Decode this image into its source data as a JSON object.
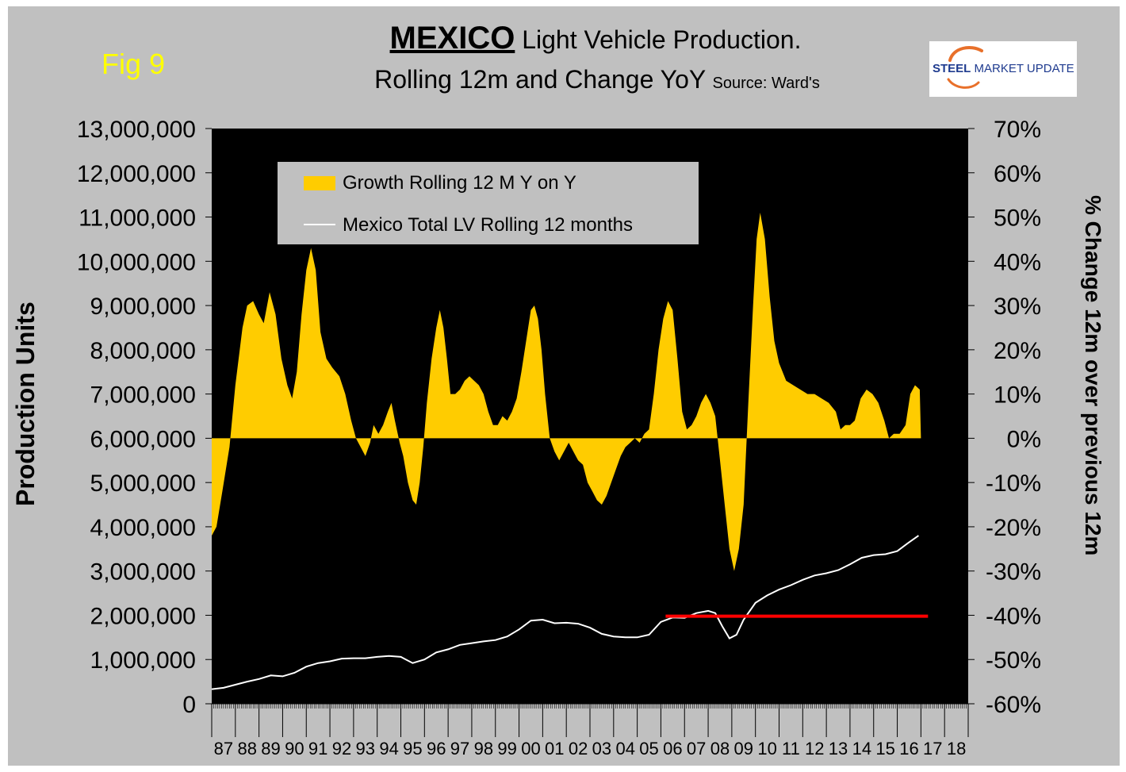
{
  "header": {
    "fig_label": "Fig 9",
    "title_bold": "MEXICO",
    "title_rest": " Light Vehicle Production.",
    "subtitle": "Rolling 12m and Change YoY",
    "source": "Source: Ward's",
    "logo_bold": "STEEL",
    "logo_rest": " MARKET UPDATE"
  },
  "colors": {
    "frame": "#c0c0c0",
    "plot_bg": "#000000",
    "growth": "#ffcc00",
    "line": "#ffffff",
    "reference": "#ff0000",
    "fig_label": "#ffff00"
  },
  "chart_data": {
    "type": "bar",
    "title": "MEXICO Light Vehicle Production. Rolling 12m and Change YoY",
    "ylabel": "Production Units",
    "y2label": "% Change 12m over previous 12m",
    "ylim": [
      0,
      13000000
    ],
    "y2lim": [
      -60,
      70
    ],
    "y_ticks": [
      "0",
      "1,000,000",
      "2,000,000",
      "3,000,000",
      "4,000,000",
      "5,000,000",
      "6,000,000",
      "7,000,000",
      "8,000,000",
      "9,000,000",
      "10,000,000",
      "11,000,000",
      "12,000,000",
      "13,000,000"
    ],
    "y2_ticks": [
      "-60%",
      "-50%",
      "-40%",
      "-30%",
      "-20%",
      "-10%",
      "0%",
      "10%",
      "20%",
      "30%",
      "40%",
      "50%",
      "60%",
      "70%"
    ],
    "categories": [
      "87",
      "88",
      "89",
      "90",
      "91",
      "92",
      "93",
      "94",
      "95",
      "96",
      "97",
      "98",
      "99",
      "00",
      "01",
      "02",
      "03",
      "04",
      "05",
      "06",
      "07",
      "08",
      "09",
      "10",
      "11",
      "12",
      "13",
      "14",
      "15",
      "16",
      "17",
      "18"
    ],
    "grid": false,
    "legend_position": "top-left",
    "series": [
      {
        "name": "Growth Rolling 12 M Y on Y",
        "axis": "right",
        "type": "area",
        "points": [
          [
            1987.0,
            -22
          ],
          [
            1987.2,
            -20
          ],
          [
            1987.45,
            -12
          ],
          [
            1987.75,
            -2
          ],
          [
            1988.0,
            12
          ],
          [
            1988.3,
            25
          ],
          [
            1988.5,
            30
          ],
          [
            1988.75,
            31
          ],
          [
            1989.0,
            28
          ],
          [
            1989.2,
            26
          ],
          [
            1989.45,
            33
          ],
          [
            1989.7,
            28
          ],
          [
            1989.95,
            18
          ],
          [
            1990.2,
            12
          ],
          [
            1990.4,
            9
          ],
          [
            1990.6,
            15
          ],
          [
            1990.8,
            28
          ],
          [
            1991.0,
            38
          ],
          [
            1991.2,
            43
          ],
          [
            1991.4,
            38
          ],
          [
            1991.6,
            24
          ],
          [
            1991.85,
            18
          ],
          [
            1992.1,
            16
          ],
          [
            1992.4,
            14
          ],
          [
            1992.65,
            10
          ],
          [
            1992.9,
            4
          ],
          [
            1993.1,
            0
          ],
          [
            1993.3,
            -2
          ],
          [
            1993.5,
            -4
          ],
          [
            1993.7,
            -1
          ],
          [
            1993.85,
            3
          ],
          [
            1994.05,
            1
          ],
          [
            1994.25,
            3
          ],
          [
            1994.45,
            6
          ],
          [
            1994.6,
            8
          ],
          [
            1994.75,
            4
          ],
          [
            1994.95,
            -1
          ],
          [
            1995.1,
            -4
          ],
          [
            1995.3,
            -10
          ],
          [
            1995.5,
            -14
          ],
          [
            1995.65,
            -15
          ],
          [
            1995.8,
            -10
          ],
          [
            1995.95,
            -2
          ],
          [
            1996.1,
            8
          ],
          [
            1996.3,
            18
          ],
          [
            1996.5,
            25
          ],
          [
            1996.65,
            29
          ],
          [
            1996.8,
            25
          ],
          [
            1996.95,
            18
          ],
          [
            1997.1,
            10
          ],
          [
            1997.3,
            10
          ],
          [
            1997.5,
            11
          ],
          [
            1997.7,
            13
          ],
          [
            1997.9,
            14
          ],
          [
            1998.1,
            13
          ],
          [
            1998.3,
            12
          ],
          [
            1998.5,
            10
          ],
          [
            1998.7,
            6
          ],
          [
            1998.9,
            3
          ],
          [
            1999.1,
            3
          ],
          [
            1999.3,
            5
          ],
          [
            1999.5,
            4
          ],
          [
            1999.7,
            6
          ],
          [
            1999.9,
            9
          ],
          [
            2000.1,
            15
          ],
          [
            2000.3,
            22
          ],
          [
            2000.5,
            29
          ],
          [
            2000.65,
            30
          ],
          [
            2000.8,
            27
          ],
          [
            2000.95,
            20
          ],
          [
            2001.1,
            10
          ],
          [
            2001.3,
            0
          ],
          [
            2001.5,
            -3
          ],
          [
            2001.7,
            -5
          ],
          [
            2001.9,
            -3
          ],
          [
            2002.1,
            -1
          ],
          [
            2002.3,
            -3
          ],
          [
            2002.5,
            -5
          ],
          [
            2002.7,
            -6
          ],
          [
            2002.9,
            -10
          ],
          [
            2003.1,
            -12
          ],
          [
            2003.3,
            -14
          ],
          [
            2003.5,
            -15
          ],
          [
            2003.7,
            -13
          ],
          [
            2003.9,
            -10
          ],
          [
            2004.1,
            -7
          ],
          [
            2004.3,
            -4
          ],
          [
            2004.5,
            -2
          ],
          [
            2004.7,
            -1
          ],
          [
            2004.9,
            0
          ],
          [
            2005.1,
            -1
          ],
          [
            2005.3,
            1
          ],
          [
            2005.5,
            2
          ],
          [
            2005.7,
            10
          ],
          [
            2005.9,
            20
          ],
          [
            2006.1,
            27
          ],
          [
            2006.3,
            31
          ],
          [
            2006.5,
            29
          ],
          [
            2006.7,
            18
          ],
          [
            2006.9,
            6
          ],
          [
            2007.1,
            2
          ],
          [
            2007.3,
            3
          ],
          [
            2007.5,
            5
          ],
          [
            2007.7,
            8
          ],
          [
            2007.9,
            10
          ],
          [
            2008.1,
            8
          ],
          [
            2008.3,
            5
          ],
          [
            2008.5,
            -5
          ],
          [
            2008.7,
            -15
          ],
          [
            2008.9,
            -25
          ],
          [
            2009.1,
            -30
          ],
          [
            2009.3,
            -25
          ],
          [
            2009.5,
            -15
          ],
          [
            2009.7,
            8
          ],
          [
            2009.9,
            30
          ],
          [
            2010.05,
            45
          ],
          [
            2010.2,
            51
          ],
          [
            2010.4,
            45
          ],
          [
            2010.6,
            32
          ],
          [
            2010.8,
            22
          ],
          [
            2011.0,
            17
          ],
          [
            2011.3,
            13
          ],
          [
            2011.6,
            12
          ],
          [
            2011.9,
            11
          ],
          [
            2012.2,
            10
          ],
          [
            2012.5,
            10
          ],
          [
            2012.8,
            9
          ],
          [
            2013.1,
            8
          ],
          [
            2013.4,
            6
          ],
          [
            2013.6,
            2
          ],
          [
            2013.8,
            3
          ],
          [
            2014.0,
            3
          ],
          [
            2014.2,
            4
          ],
          [
            2014.45,
            9
          ],
          [
            2014.7,
            11
          ],
          [
            2014.95,
            10
          ],
          [
            2015.2,
            8
          ],
          [
            2015.45,
            4
          ],
          [
            2015.65,
            0
          ],
          [
            2015.85,
            1
          ],
          [
            2016.1,
            1
          ],
          [
            2016.35,
            3
          ],
          [
            2016.55,
            10
          ],
          [
            2016.75,
            12
          ],
          [
            2016.95,
            11
          ],
          [
            2017.0,
            0
          ]
        ]
      },
      {
        "name": "Mexico Total LV Rolling 12 months",
        "axis": "left",
        "type": "line",
        "points": [
          [
            1987.0,
            330000
          ],
          [
            1987.5,
            360000
          ],
          [
            1988.0,
            430000
          ],
          [
            1988.5,
            500000
          ],
          [
            1989.0,
            560000
          ],
          [
            1989.5,
            640000
          ],
          [
            1990.0,
            620000
          ],
          [
            1990.5,
            700000
          ],
          [
            1991.0,
            840000
          ],
          [
            1991.5,
            920000
          ],
          [
            1992.0,
            960000
          ],
          [
            1992.5,
            1020000
          ],
          [
            1993.0,
            1030000
          ],
          [
            1993.5,
            1030000
          ],
          [
            1994.0,
            1060000
          ],
          [
            1994.5,
            1080000
          ],
          [
            1995.0,
            1060000
          ],
          [
            1995.5,
            920000
          ],
          [
            1996.0,
            1000000
          ],
          [
            1996.5,
            1160000
          ],
          [
            1997.0,
            1230000
          ],
          [
            1997.5,
            1330000
          ],
          [
            1998.0,
            1370000
          ],
          [
            1998.5,
            1410000
          ],
          [
            1999.0,
            1440000
          ],
          [
            1999.5,
            1520000
          ],
          [
            2000.0,
            1680000
          ],
          [
            2000.5,
            1880000
          ],
          [
            2001.0,
            1900000
          ],
          [
            2001.5,
            1820000
          ],
          [
            2002.0,
            1830000
          ],
          [
            2002.5,
            1810000
          ],
          [
            2003.0,
            1720000
          ],
          [
            2003.5,
            1580000
          ],
          [
            2004.0,
            1520000
          ],
          [
            2004.5,
            1500000
          ],
          [
            2005.0,
            1500000
          ],
          [
            2005.5,
            1560000
          ],
          [
            2006.0,
            1850000
          ],
          [
            2006.5,
            1950000
          ],
          [
            2007.0,
            1940000
          ],
          [
            2007.5,
            2050000
          ],
          [
            2008.0,
            2100000
          ],
          [
            2008.3,
            2050000
          ],
          [
            2008.6,
            1750000
          ],
          [
            2008.9,
            1480000
          ],
          [
            2009.2,
            1560000
          ],
          [
            2009.5,
            1900000
          ],
          [
            2010.0,
            2280000
          ],
          [
            2010.5,
            2450000
          ],
          [
            2011.0,
            2580000
          ],
          [
            2011.5,
            2680000
          ],
          [
            2012.0,
            2800000
          ],
          [
            2012.5,
            2900000
          ],
          [
            2013.0,
            2950000
          ],
          [
            2013.5,
            3020000
          ],
          [
            2014.0,
            3150000
          ],
          [
            2014.5,
            3300000
          ],
          [
            2015.0,
            3360000
          ],
          [
            2015.5,
            3380000
          ],
          [
            2016.0,
            3450000
          ],
          [
            2016.5,
            3650000
          ],
          [
            2016.9,
            3800000
          ]
        ]
      },
      {
        "name": "reference",
        "axis": "left",
        "type": "line",
        "points": [
          [
            2006.2,
            1980000
          ],
          [
            2017.3,
            1980000
          ]
        ]
      }
    ]
  }
}
